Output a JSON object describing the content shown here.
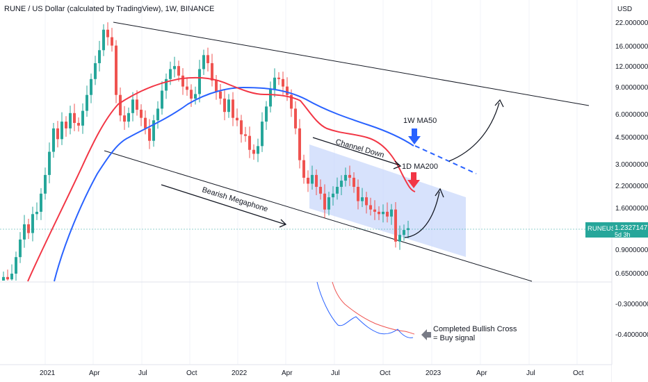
{
  "header": {
    "title": "RUNE / US Dollar (calculated by TradingView), 1W, BINANCE",
    "currency": "USD"
  },
  "price_tag": {
    "symbol": "RUNEUSD",
    "price": "1.2327147",
    "countdown": "5d 3h"
  },
  "annotations": {
    "channel": "Channel Down",
    "megaphone": "Bearish Megaphone",
    "ma50": "1W MA50",
    "ma200": "1D MA200",
    "cross_line1": "Completed Bullish Cross",
    "cross_line2": "= Buy signal"
  },
  "colors": {
    "up": "#26a69a",
    "down": "#ef5350",
    "ma50": "#2962ff",
    "ma200": "#f23645",
    "channel_fill": "#c9d8fb",
    "tag": "#26a69a",
    "arrow_blue": "#2962ff",
    "arrow_red": "#f23645",
    "arrow_gray": "#787b86"
  },
  "chart_data": {
    "type": "line",
    "x_ticks": [
      "2021",
      "Apr",
      "Jul",
      "Oct",
      "2022",
      "Apr",
      "Jul",
      "Oct",
      "2023",
      "Apr",
      "Jul",
      "Oct"
    ],
    "price_axis": [
      "22.0000000",
      "16.0000000",
      "12.0000000",
      "9.0000000",
      "6.0000000",
      "4.5000000",
      "3.0000000",
      "2.2000000",
      "1.6000000",
      "1.2000000",
      "0.9000000",
      "0.6500000"
    ],
    "indicator_axis": [
      "-0.3000000",
      "-0.4000000"
    ],
    "y_scale": "log",
    "candles_close": [
      0.62,
      0.6,
      0.65,
      0.82,
      1.05,
      1.3,
      1.15,
      1.5,
      1.55,
      2.0,
      2.6,
      3.6,
      5.0,
      4.3,
      5.5,
      5.0,
      6.2,
      5.4,
      5.2,
      6.4,
      8.0,
      10.0,
      12.5,
      15.0,
      20.0,
      18.0,
      16.0,
      8.0,
      6.0,
      5.5,
      6.2,
      7.5,
      6.5,
      5.8,
      5.0,
      4.2,
      5.6,
      6.6,
      8.5,
      10.0,
      11.5,
      12.0,
      10.5,
      9.0,
      8.6,
      7.6,
      8.1,
      11.5,
      14.0,
      12.5,
      9.8,
      8.4,
      7.6,
      6.3,
      7.5,
      5.8,
      5.6,
      4.6,
      4.5,
      3.7,
      3.5,
      3.9,
      5.5,
      6.8,
      8.7,
      10.2,
      10.0,
      9.0,
      8.0,
      6.6,
      5.0,
      3.2,
      2.5,
      2.3,
      2.6,
      2.2,
      2.0,
      1.6,
      1.9,
      2.0,
      2.2,
      2.4,
      2.6,
      2.5,
      2.2,
      1.8,
      1.9,
      1.7,
      1.6,
      1.55,
      1.5,
      1.55,
      1.45,
      1.6,
      1.02,
      1.12,
      1.2,
      1.23
    ],
    "series": [
      {
        "name": "1W MA50",
        "values": []
      },
      {
        "name": "1D MA200",
        "values": []
      }
    ]
  }
}
